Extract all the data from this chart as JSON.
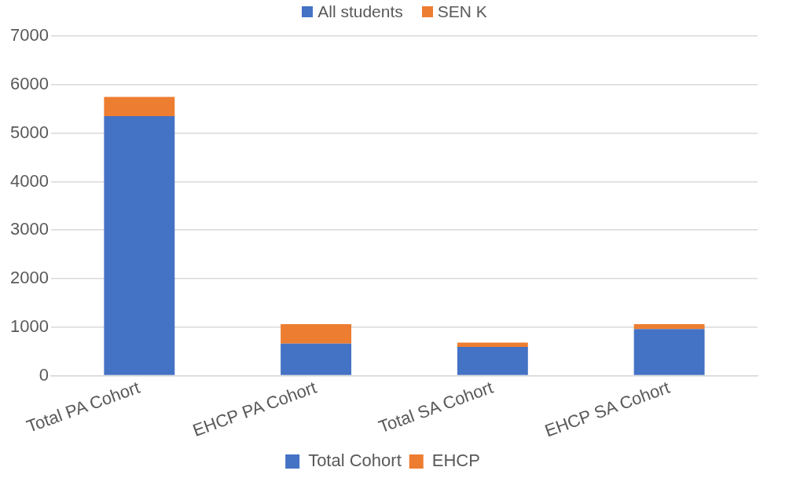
{
  "chart_data": {
    "type": "bar",
    "stacked": true,
    "categories": [
      "Total PA Cohort",
      "EHCP PA Cohort",
      "Total SA Cohort",
      "EHCP SA Cohort"
    ],
    "series": [
      {
        "name": "Total Cohort",
        "color": "#4472c4",
        "values": [
          5350,
          660,
          590,
          960
        ]
      },
      {
        "name": "EHCP",
        "color": "#ed7d31",
        "values": [
          400,
          400,
          90,
          100
        ]
      }
    ],
    "ylim": [
      0,
      7000
    ],
    "yticks": [
      0,
      1000,
      2000,
      3000,
      4000,
      5000,
      6000,
      7000
    ],
    "grid": "y",
    "legend": "bottom",
    "annotations": [
      "All students",
      "SEN K"
    ]
  }
}
